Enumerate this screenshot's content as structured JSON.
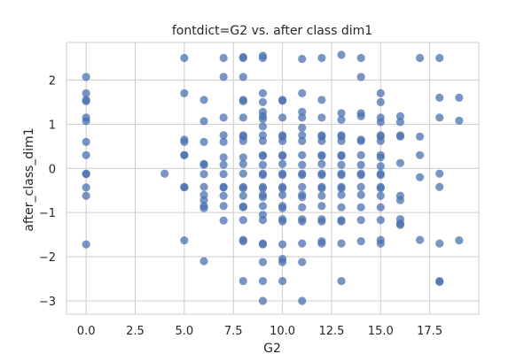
{
  "chart_data": {
    "type": "scatter",
    "title": "fontdict=G2 vs. after class dim1",
    "xlabel": "G2",
    "ylabel": "after_class_dim1",
    "xlim": [
      -1,
      20
    ],
    "ylim": [
      -3.3,
      2.85
    ],
    "xticks": [
      0.0,
      2.5,
      5.0,
      7.5,
      10.0,
      12.5,
      15.0,
      17.5
    ],
    "xtick_labels": [
      "0.0",
      "2.5",
      "5.0",
      "7.5",
      "10.0",
      "12.5",
      "15.0",
      "17.5"
    ],
    "yticks": [
      -3,
      -2,
      -1,
      0,
      1,
      2
    ],
    "ytick_labels": [
      "−3",
      "−2",
      "−1",
      "0",
      "1",
      "2"
    ],
    "grid": true,
    "marker_color": "#4c72b0",
    "points": [
      [
        0,
        2.07
      ],
      [
        0,
        1.7
      ],
      [
        0,
        1.55
      ],
      [
        0,
        1.52
      ],
      [
        0,
        1.15
      ],
      [
        0,
        1.07
      ],
      [
        0,
        0.6
      ],
      [
        0,
        0.3
      ],
      [
        0,
        -0.12
      ],
      [
        0,
        -0.13
      ],
      [
        0,
        -0.43
      ],
      [
        0,
        -0.62
      ],
      [
        0,
        -1.72
      ],
      [
        4,
        -0.12
      ],
      [
        5,
        2.5
      ],
      [
        5,
        1.7
      ],
      [
        5,
        0.65
      ],
      [
        5,
        0.6
      ],
      [
        5,
        0.3
      ],
      [
        5,
        0.3
      ],
      [
        5,
        -0.42
      ],
      [
        5,
        -0.43
      ],
      [
        5,
        -1.63
      ],
      [
        6,
        1.55
      ],
      [
        6,
        1.07
      ],
      [
        6,
        0.6
      ],
      [
        6,
        0.1
      ],
      [
        6,
        0.08
      ],
      [
        6,
        -0.13
      ],
      [
        6,
        -0.42
      ],
      [
        6,
        -0.6
      ],
      [
        6,
        -0.72
      ],
      [
        6,
        -0.85
      ],
      [
        6,
        -0.9
      ],
      [
        6,
        -2.1
      ],
      [
        7,
        2.5
      ],
      [
        7,
        2.07
      ],
      [
        7,
        1.15
      ],
      [
        7,
        0.75
      ],
      [
        7,
        0.6
      ],
      [
        7,
        0.25
      ],
      [
        7,
        0.08
      ],
      [
        7,
        -0.13
      ],
      [
        7,
        -0.42
      ],
      [
        7,
        -0.43
      ],
      [
        7,
        -0.62
      ],
      [
        7,
        -0.85
      ],
      [
        7,
        -1.18
      ],
      [
        8,
        2.52
      ],
      [
        8,
        2.5
      ],
      [
        8,
        2.07
      ],
      [
        8,
        1.55
      ],
      [
        8,
        1.52
      ],
      [
        8,
        1.15
      ],
      [
        8,
        0.75
      ],
      [
        8,
        0.72
      ],
      [
        8,
        0.62
      ],
      [
        8,
        0.25
      ],
      [
        8,
        0.1
      ],
      [
        8,
        -0.12
      ],
      [
        8,
        -0.42
      ],
      [
        8,
        -0.45
      ],
      [
        8,
        -0.62
      ],
      [
        8,
        -0.86
      ],
      [
        8,
        -0.88
      ],
      [
        8,
        -1.17
      ],
      [
        8,
        -1.62
      ],
      [
        8,
        -1.65
      ],
      [
        8,
        -2.55
      ],
      [
        9,
        2.55
      ],
      [
        9,
        2.5
      ],
      [
        9,
        1.7
      ],
      [
        9,
        1.5
      ],
      [
        9,
        1.28
      ],
      [
        9,
        1.18
      ],
      [
        9,
        1.12
      ],
      [
        9,
        0.95
      ],
      [
        9,
        0.75
      ],
      [
        9,
        0.62
      ],
      [
        9,
        0.3
      ],
      [
        9,
        0.28
      ],
      [
        9,
        0.08
      ],
      [
        9,
        -0.12
      ],
      [
        9,
        -0.15
      ],
      [
        9,
        -0.42
      ],
      [
        9,
        -0.45
      ],
      [
        9,
        -0.6
      ],
      [
        9,
        -0.65
      ],
      [
        9,
        -0.85
      ],
      [
        9,
        -1.05
      ],
      [
        9,
        -1.17
      ],
      [
        9,
        -1.7
      ],
      [
        9,
        -1.72
      ],
      [
        9,
        -2.12
      ],
      [
        9,
        -2.55
      ],
      [
        9,
        -3.0
      ],
      [
        10,
        1.55
      ],
      [
        10,
        1.53
      ],
      [
        10,
        1.15
      ],
      [
        10,
        0.75
      ],
      [
        10,
        0.72
      ],
      [
        10,
        0.62
      ],
      [
        10,
        0.3
      ],
      [
        10,
        0.28
      ],
      [
        10,
        0.1
      ],
      [
        10,
        -0.12
      ],
      [
        10,
        -0.15
      ],
      [
        10,
        -0.42
      ],
      [
        10,
        -0.45
      ],
      [
        10,
        -0.6
      ],
      [
        10,
        -0.85
      ],
      [
        10,
        -0.9
      ],
      [
        10,
        -1.15
      ],
      [
        10,
        -1.2
      ],
      [
        10,
        -1.72
      ],
      [
        10,
        -2.05
      ],
      [
        10,
        -2.12
      ],
      [
        10,
        -2.55
      ],
      [
        11,
        2.48
      ],
      [
        11,
        1.7
      ],
      [
        11,
        1.28
      ],
      [
        11,
        1.15
      ],
      [
        11,
        0.92
      ],
      [
        11,
        0.75
      ],
      [
        11,
        0.62
      ],
      [
        11,
        0.3
      ],
      [
        11,
        0.08
      ],
      [
        11,
        -0.12
      ],
      [
        11,
        -0.15
      ],
      [
        11,
        -0.42
      ],
      [
        11,
        -0.6
      ],
      [
        11,
        -0.65
      ],
      [
        11,
        -0.88
      ],
      [
        11,
        -1.15
      ],
      [
        11,
        -1.2
      ],
      [
        11,
        -1.7
      ],
      [
        11,
        -2.12
      ],
      [
        11,
        -3.0
      ],
      [
        12,
        2.5
      ],
      [
        12,
        1.55
      ],
      [
        12,
        1.15
      ],
      [
        12,
        0.75
      ],
      [
        12,
        0.72
      ],
      [
        12,
        0.62
      ],
      [
        12,
        0.3
      ],
      [
        12,
        0.28
      ],
      [
        12,
        0.1
      ],
      [
        12,
        -0.12
      ],
      [
        12,
        -0.15
      ],
      [
        12,
        -0.42
      ],
      [
        12,
        -0.45
      ],
      [
        12,
        -0.62
      ],
      [
        12,
        -0.85
      ],
      [
        12,
        -1.15
      ],
      [
        12,
        -1.2
      ],
      [
        12,
        -1.65
      ],
      [
        12,
        -1.7
      ],
      [
        13,
        2.57
      ],
      [
        13,
        1.25
      ],
      [
        13,
        1.1
      ],
      [
        13,
        0.75
      ],
      [
        13,
        0.72
      ],
      [
        13,
        0.62
      ],
      [
        13,
        0.3
      ],
      [
        13,
        0.28
      ],
      [
        13,
        0.08
      ],
      [
        13,
        -0.12
      ],
      [
        13,
        -0.15
      ],
      [
        13,
        -0.42
      ],
      [
        13,
        -0.45
      ],
      [
        13,
        -0.6
      ],
      [
        13,
        -0.88
      ],
      [
        13,
        -1.17
      ],
      [
        13,
        -1.2
      ],
      [
        13,
        -1.7
      ],
      [
        13,
        -2.55
      ],
      [
        14,
        2.5
      ],
      [
        14,
        2.07
      ],
      [
        14,
        1.25
      ],
      [
        14,
        1.18
      ],
      [
        14,
        0.65
      ],
      [
        14,
        0.62
      ],
      [
        14,
        0.3
      ],
      [
        14,
        0.08
      ],
      [
        14,
        -0.12
      ],
      [
        14,
        -0.15
      ],
      [
        14,
        -0.42
      ],
      [
        14,
        -0.6
      ],
      [
        14,
        -0.88
      ],
      [
        14,
        -1.17
      ],
      [
        14,
        -1.65
      ],
      [
        15,
        1.7
      ],
      [
        15,
        1.5
      ],
      [
        15,
        1.15
      ],
      [
        15,
        1.05
      ],
      [
        15,
        0.75
      ],
      [
        15,
        0.72
      ],
      [
        15,
        0.62
      ],
      [
        15,
        0.3
      ],
      [
        15,
        0.25
      ],
      [
        15,
        0.05
      ],
      [
        15,
        -0.12
      ],
      [
        15,
        -0.15
      ],
      [
        15,
        -0.42
      ],
      [
        15,
        -0.45
      ],
      [
        15,
        -0.62
      ],
      [
        15,
        -0.88
      ],
      [
        15,
        -1.17
      ],
      [
        15,
        -1.62
      ],
      [
        15,
        -1.7
      ],
      [
        16,
        1.18
      ],
      [
        16,
        1.05
      ],
      [
        16,
        0.75
      ],
      [
        16,
        0.72
      ],
      [
        16,
        0.12
      ],
      [
        16,
        -0.62
      ],
      [
        16,
        -0.72
      ],
      [
        16,
        -1.15
      ],
      [
        16,
        -1.25
      ],
      [
        16,
        -1.28
      ],
      [
        17,
        2.5
      ],
      [
        17,
        0.72
      ],
      [
        17,
        0.3
      ],
      [
        17,
        -0.2
      ],
      [
        17,
        -1.62
      ],
      [
        18,
        2.5
      ],
      [
        18,
        1.6
      ],
      [
        18,
        1.15
      ],
      [
        18,
        -0.12
      ],
      [
        18,
        -0.42
      ],
      [
        18,
        -1.7
      ],
      [
        18,
        -2.55
      ],
      [
        18,
        -2.57
      ],
      [
        19,
        1.6
      ],
      [
        19,
        1.08
      ],
      [
        19,
        -1.63
      ]
    ]
  }
}
